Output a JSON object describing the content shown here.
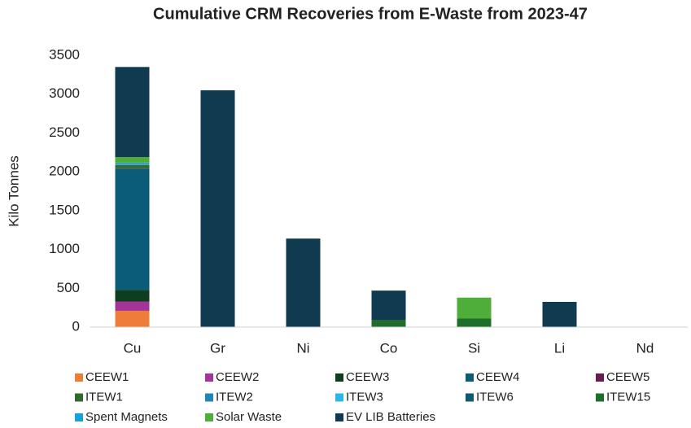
{
  "chart_data": {
    "type": "bar",
    "stacked": true,
    "title": "Cumulative CRM Recoveries from E-Waste from 2023-47",
    "y_label": "Kilo Tonnes",
    "categories": [
      "Cu",
      "Gr",
      "Ni",
      "Co",
      "Si",
      "Li",
      "Nd"
    ],
    "series": [
      {
        "name": "CEEW1",
        "color": "#f07c3a",
        "values": [
          210,
          0,
          0,
          0,
          0,
          0,
          0
        ]
      },
      {
        "name": "CEEW2",
        "color": "#a5349a",
        "values": [
          120,
          0,
          0,
          0,
          0,
          0,
          0
        ]
      },
      {
        "name": "CEEW3",
        "color": "#0f3d1f",
        "values": [
          150,
          0,
          0,
          0,
          0,
          0,
          0
        ]
      },
      {
        "name": "CEEW4",
        "color": "#0b5c78",
        "values": [
          1560,
          0,
          0,
          0,
          0,
          0,
          0
        ]
      },
      {
        "name": "CEEW5",
        "color": "#6b1a4f",
        "values": [
          5,
          0,
          0,
          0,
          0,
          0,
          0
        ]
      },
      {
        "name": "ITEW1",
        "color": "#2f6b2a",
        "values": [
          40,
          0,
          0,
          0,
          0,
          0,
          0
        ]
      },
      {
        "name": "ITEW2",
        "color": "#1f86b5",
        "values": [
          5,
          0,
          0,
          0,
          0,
          0,
          0
        ]
      },
      {
        "name": "ITEW3",
        "color": "#2ab8e8",
        "values": [
          15,
          0,
          0,
          0,
          0,
          0,
          0
        ]
      },
      {
        "name": "ITEW6",
        "color": "#0d5a72",
        "values": [
          5,
          0,
          0,
          0,
          0,
          0,
          0
        ]
      },
      {
        "name": "ITEW15",
        "color": "#1f6e2a",
        "values": [
          5,
          0,
          0,
          90,
          110,
          0,
          0
        ]
      },
      {
        "name": "Spent Magnets",
        "color": "#1a9fd6",
        "values": [
          5,
          0,
          0,
          0,
          0,
          0,
          0
        ]
      },
      {
        "name": "Solar Waste",
        "color": "#4fae3a",
        "values": [
          70,
          0,
          0,
          0,
          270,
          0,
          0
        ]
      },
      {
        "name": "EV LIB Batteries",
        "color": "#0f3a4f",
        "values": [
          1160,
          3050,
          1140,
          380,
          0,
          325,
          0
        ]
      }
    ],
    "ylim": [
      0,
      3500
    ],
    "yticks": [
      0,
      500,
      1000,
      1500,
      2000,
      2500,
      3000,
      3500
    ],
    "grid": false
  }
}
